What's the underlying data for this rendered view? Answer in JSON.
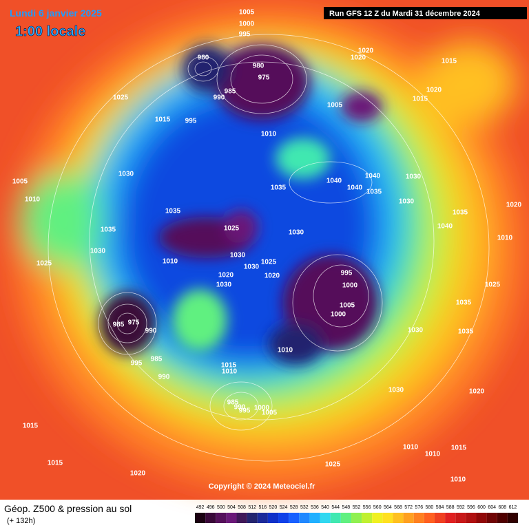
{
  "header": {
    "date": "Lundi 6 janvier 2025",
    "time": "1:00 locale",
    "run": "Run GFS 12 Z du Mardi 31 décembre 2024"
  },
  "map": {
    "pressure_labels": [
      "1005",
      "1000",
      "995",
      "980",
      "975",
      "980",
      "985",
      "990",
      "995",
      "1015",
      "1025",
      "1005",
      "1010",
      "1020",
      "1020",
      "1015",
      "1020",
      "1015",
      "1030",
      "1035",
      "1035",
      "1040",
      "1040",
      "1040",
      "1035",
      "1030",
      "1030",
      "1035",
      "1040",
      "1025",
      "1030",
      "1030",
      "1030",
      "1025",
      "1020",
      "1010",
      "1020",
      "1030",
      "1005",
      "1010",
      "1035",
      "1030",
      "1025",
      "995",
      "1000",
      "1005",
      "1000",
      "1030",
      "1035",
      "1035",
      "1025",
      "1010",
      "990",
      "995",
      "985",
      "975",
      "985",
      "990",
      "1015",
      "1010",
      "985",
      "990",
      "995",
      "1000",
      "1005",
      "1030",
      "1020",
      "1015",
      "1015",
      "1020",
      "1025",
      "1010",
      "1010",
      "1015",
      "1010",
      "1020",
      "1010"
    ]
  },
  "copyright": "Copyright © 2024 Meteociel.fr",
  "legend": {
    "title": "Géop. Z500 & pression au sol",
    "subtitle": "(+ 132h)",
    "scale": [
      492,
      496,
      500,
      504,
      508,
      512,
      516,
      520,
      524,
      528,
      532,
      536,
      540,
      544,
      548,
      552,
      556,
      560,
      564,
      568,
      572,
      576,
      580,
      584,
      588,
      592,
      596,
      600,
      604,
      608,
      612
    ],
    "colors": [
      "#1a0010",
      "#3a0838",
      "#55105a",
      "#6a1878",
      "#401858",
      "#24246e",
      "#1c2a9a",
      "#1030c8",
      "#1040e8",
      "#1860ff",
      "#2088ff",
      "#20b0ff",
      "#30d8f0",
      "#40e8b0",
      "#60f080",
      "#90f050",
      "#c0f030",
      "#f0f020",
      "#ffe020",
      "#ffc020",
      "#ffa020",
      "#ff8020",
      "#ff6020",
      "#f04020",
      "#e02020",
      "#c81818",
      "#b01010",
      "#900808",
      "#700404",
      "#500000",
      "#300000"
    ]
  }
}
